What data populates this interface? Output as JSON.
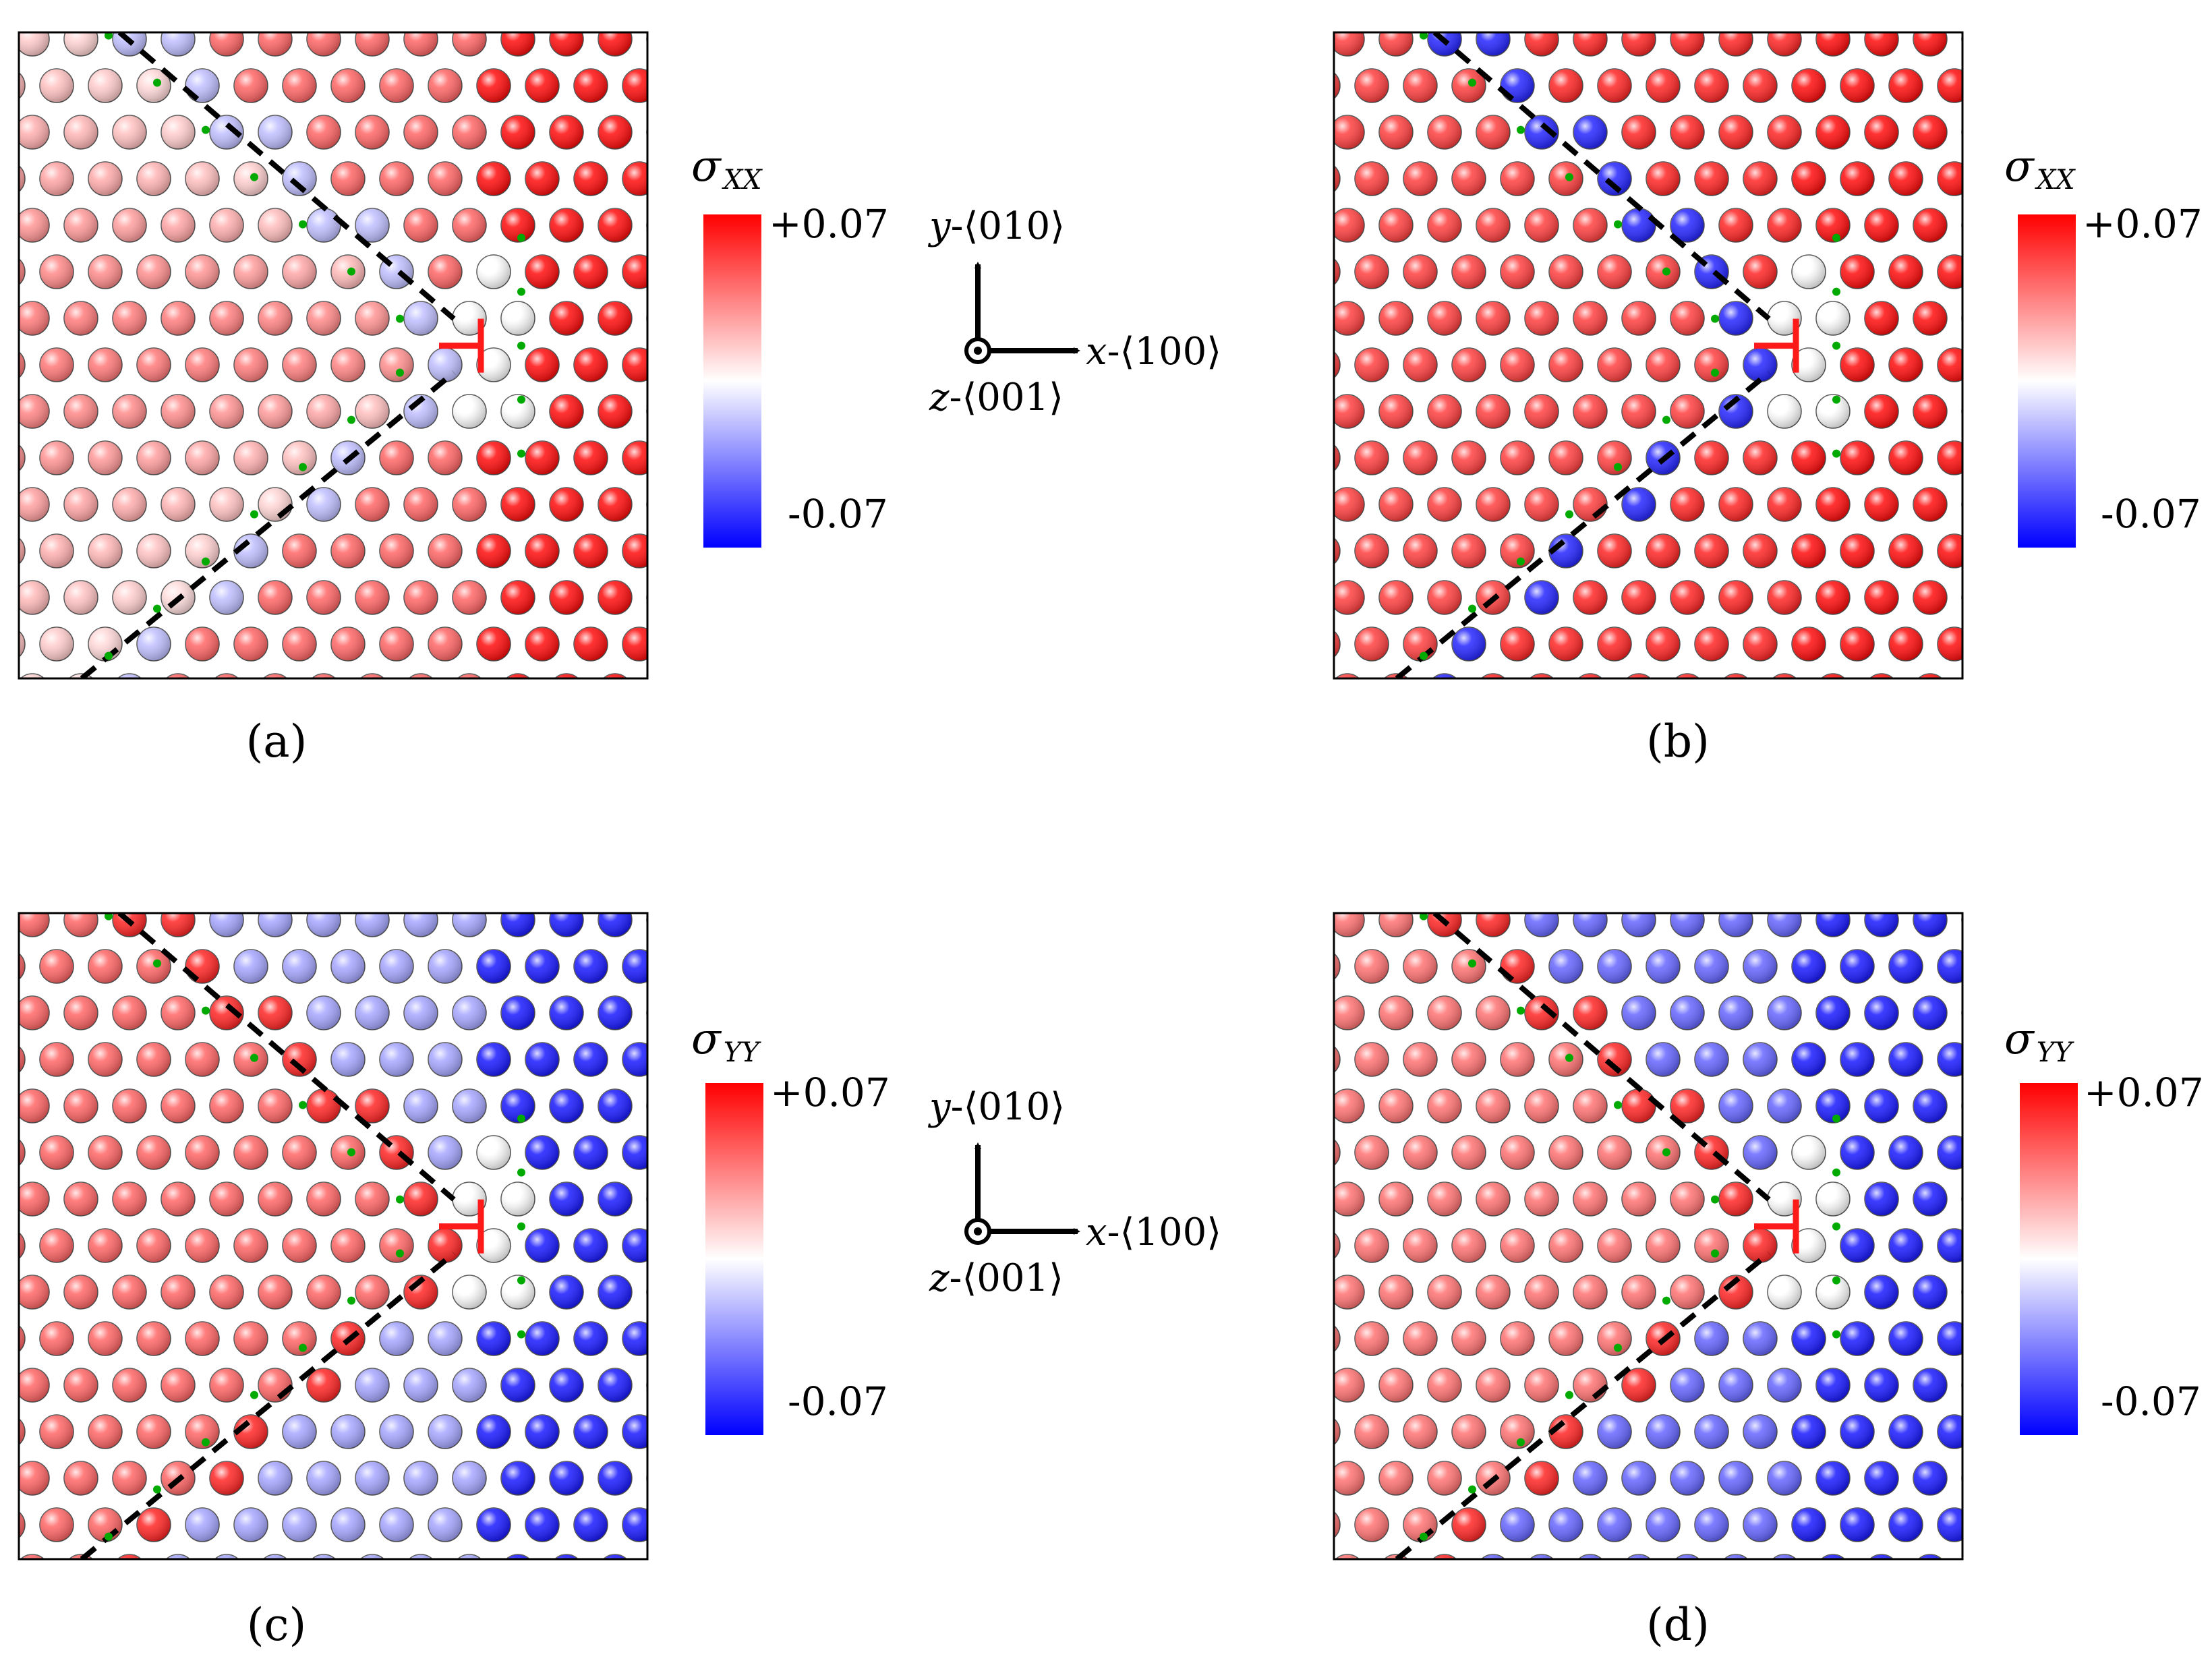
{
  "figure": {
    "panels": [
      {
        "label": "(a)",
        "colorbar": {
          "symbol": "σ",
          "sub": "XX",
          "max_label": "+0.07",
          "min_label": "-0.07"
        },
        "field": "xx",
        "variant": 0
      },
      {
        "label": "(b)",
        "colorbar": {
          "symbol": "σ",
          "sub": "XX",
          "max_label": "+0.07",
          "min_label": "-0.07"
        },
        "field": "xx",
        "variant": 1
      },
      {
        "label": "(c)",
        "colorbar": {
          "symbol": "σ",
          "sub": "YY",
          "max_label": "+0.07",
          "min_label": "-0.07"
        },
        "field": "yy",
        "variant": 0
      },
      {
        "label": "(d)",
        "colorbar": {
          "symbol": "σ",
          "sub": "YY",
          "max_label": "+0.07",
          "min_label": "-0.07"
        },
        "field": "yy",
        "variant": 1
      }
    ],
    "axes_legend": {
      "y_label": {
        "letter": "y",
        "dir": "-⟨010⟩"
      },
      "x_label": {
        "letter": "x",
        "dir": "-⟨100⟩"
      },
      "z_label": {
        "letter": "z",
        "dir": "-⟨001⟩"
      }
    },
    "colorbar_range": [
      -0.07,
      0.07
    ],
    "colors": {
      "positive": "#ff0000",
      "neutral": "#ffffff",
      "negative": "#0000ff",
      "dislocation_symbol": "#ff1a1a",
      "slip_trace_dots": "#00aa00",
      "guide_lines": "#000000"
    }
  }
}
